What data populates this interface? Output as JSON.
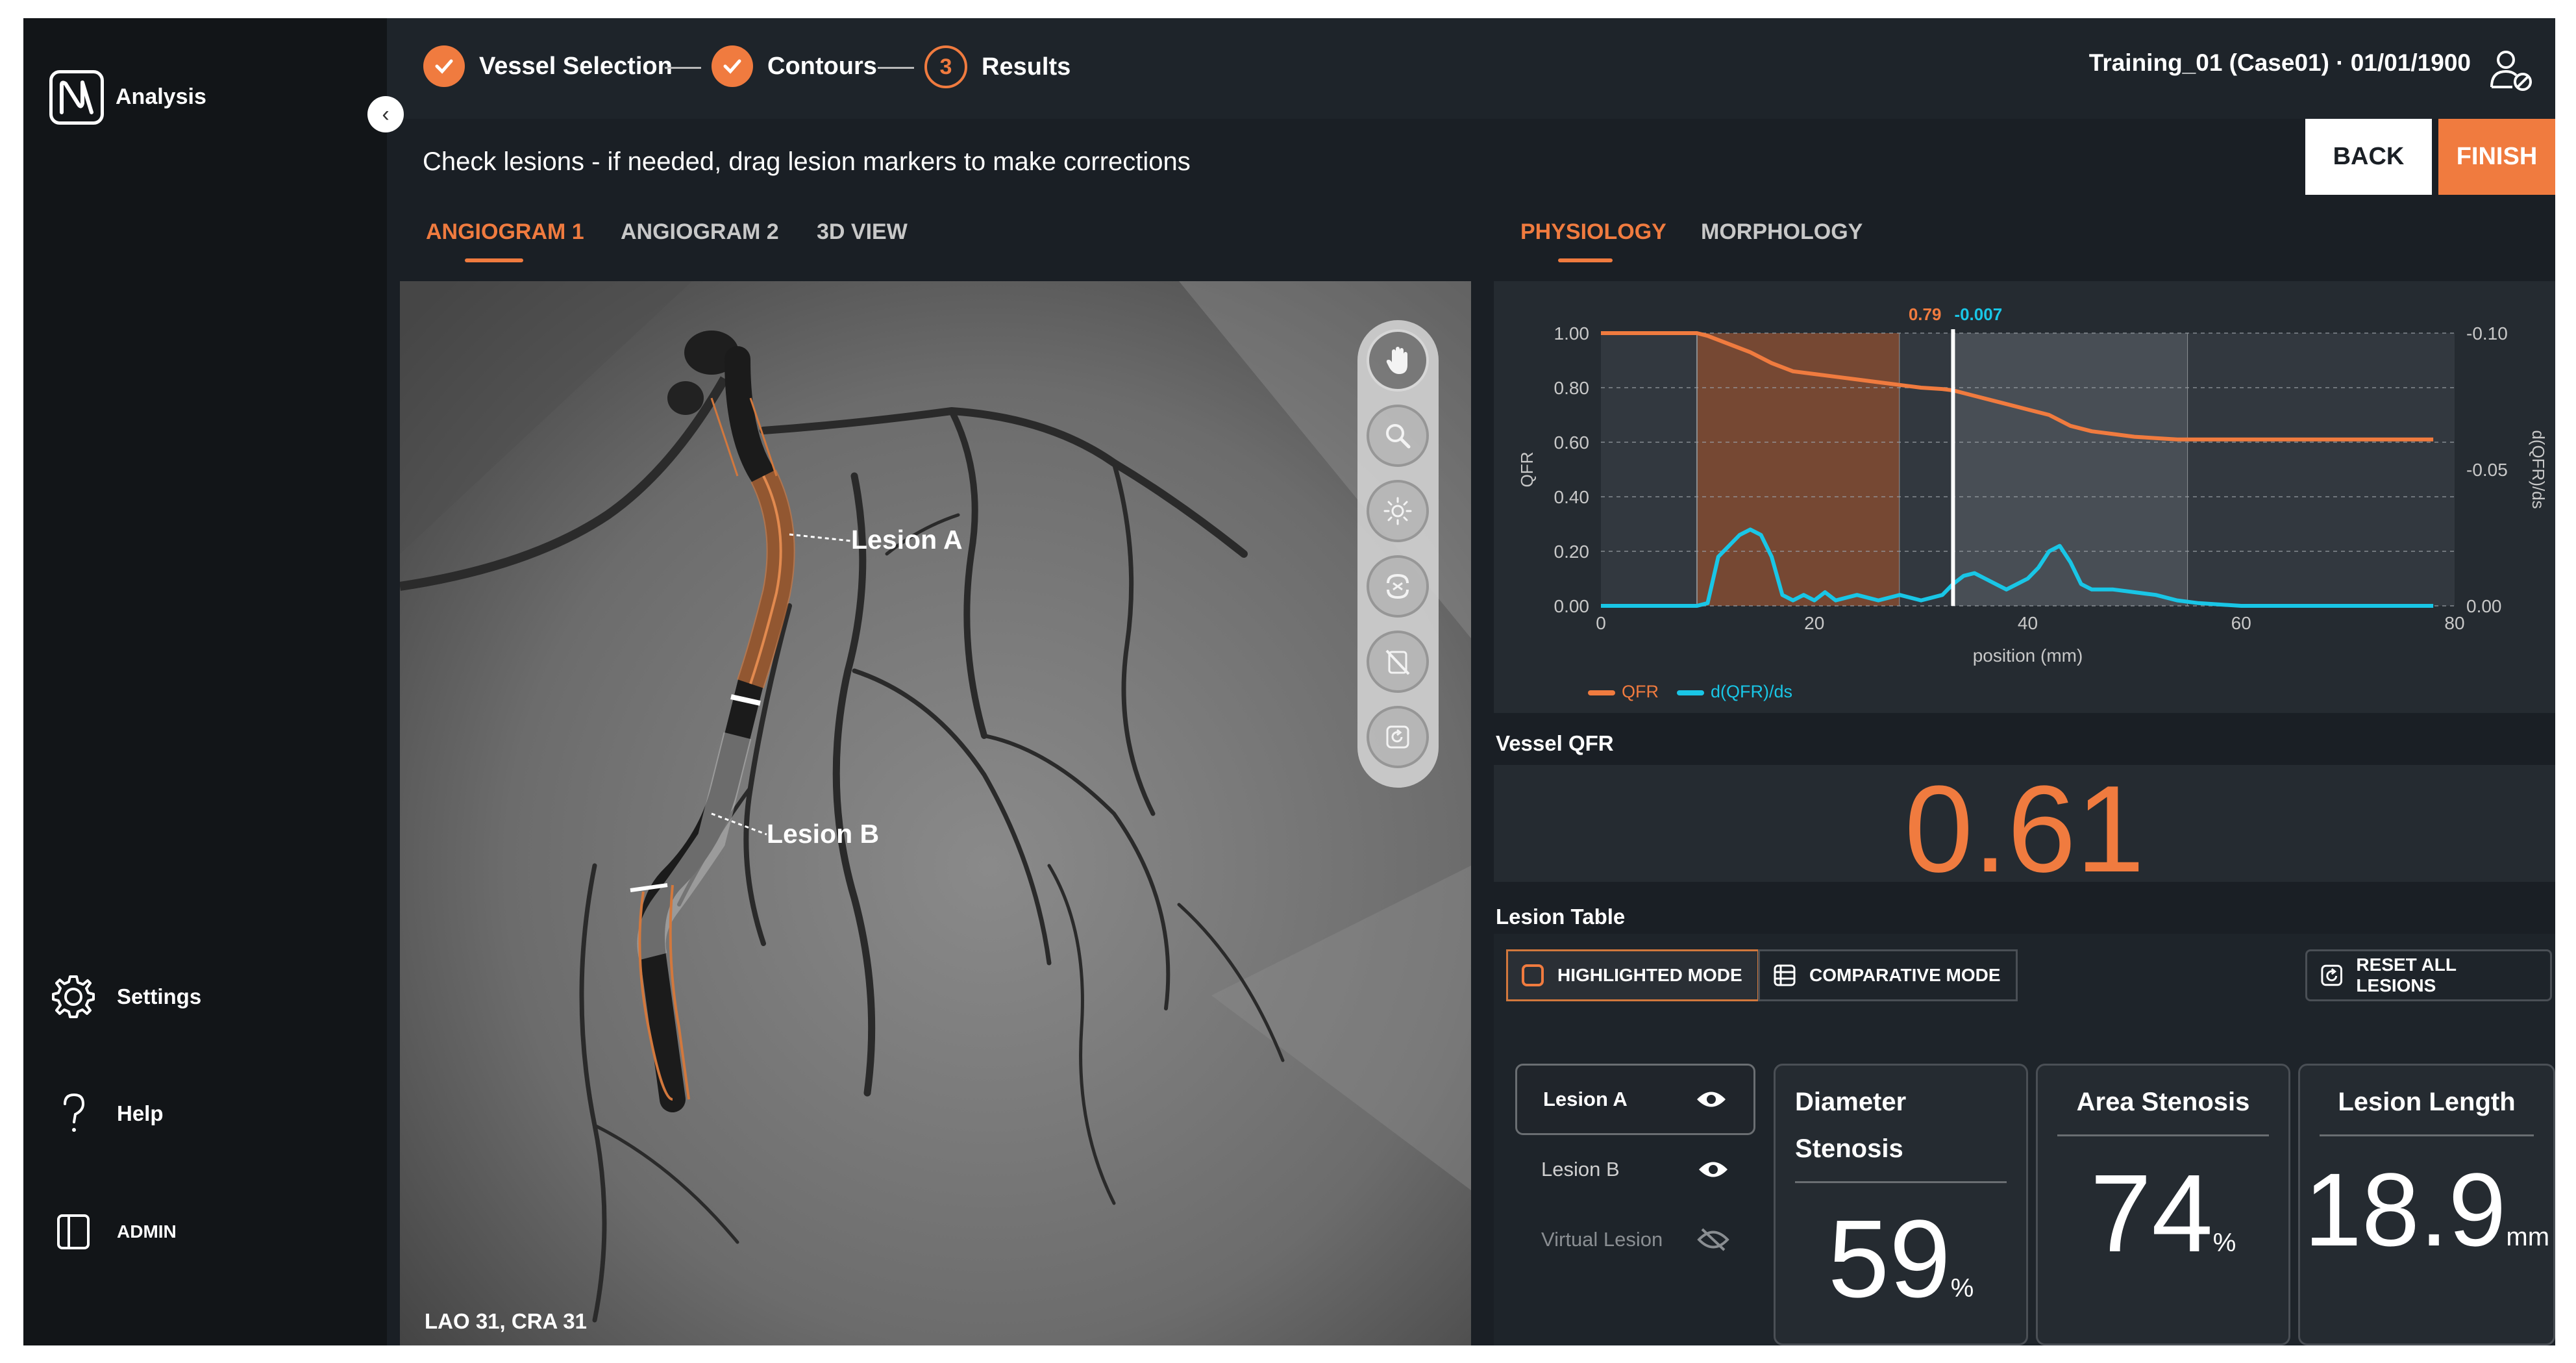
{
  "sidebar": {
    "app_name": "Analysis",
    "items": [
      {
        "label": "Settings",
        "icon": "gear-icon"
      },
      {
        "label": "Help",
        "icon": "question-icon"
      },
      {
        "label": "ADMIN",
        "icon": "admin-panel-icon"
      }
    ]
  },
  "steps": [
    {
      "label": "Vessel Selection",
      "state": "done"
    },
    {
      "label": "Contours",
      "state": "done"
    },
    {
      "label": "Results",
      "number": "3",
      "state": "current"
    }
  ],
  "case_info": "Training_01 (Case01)  ·  01/01/1900",
  "instruction": "Check lesions - if needed, drag lesion markers to make corrections",
  "buttons": {
    "back": "BACK",
    "finish": "FINISH"
  },
  "left_tabs": [
    "ANGIOGRAM 1",
    "ANGIOGRAM 2",
    "3D VIEW"
  ],
  "right_tabs": [
    "PHYSIOLOGY",
    "MORPHOLOGY"
  ],
  "angiogram": {
    "lesion_a_label": "Lesion A",
    "lesion_b_label": "Lesion B",
    "view_label": "LAO 31, CRA 31",
    "tools": [
      "hand-pan-icon",
      "zoom-icon",
      "brightness-icon",
      "lasso-icon",
      "hide-icon",
      "reset-icon"
    ]
  },
  "chart_data": {
    "type": "line",
    "xlabel": "position (mm)",
    "ylabel": "QFR",
    "y2label": "d(QFR)/ds",
    "xlim": [
      0,
      80
    ],
    "ylim": [
      0,
      1.0
    ],
    "y2lim": [
      0,
      -0.1
    ],
    "x_ticks": [
      "0",
      "20",
      "40",
      "60",
      "80"
    ],
    "y_ticks": [
      "0.00",
      "0.20",
      "0.40",
      "0.60",
      "0.80",
      "1.00"
    ],
    "y2_ticks": [
      "0.00",
      "-0.05",
      "-0.10"
    ],
    "cursor_x": 33,
    "cursor_readout_qfr": "0.79",
    "cursor_readout_grad": "-0.007",
    "regions": [
      {
        "from": 0,
        "to": 9,
        "kind": "normal"
      },
      {
        "from": 9,
        "to": 28,
        "kind": "lesion-highlighted"
      },
      {
        "from": 28,
        "to": 33,
        "kind": "normal"
      },
      {
        "from": 33,
        "to": 55,
        "kind": "lesion"
      },
      {
        "from": 55,
        "to": 80,
        "kind": "normal"
      }
    ],
    "series": [
      {
        "name": "QFR",
        "color": "#f07b3f",
        "x": [
          0,
          9,
          10,
          12,
          14,
          16,
          18,
          20,
          22,
          24,
          26,
          28,
          30,
          32,
          33,
          34,
          36,
          38,
          40,
          42,
          44,
          46,
          48,
          50,
          52,
          54,
          56,
          60,
          64,
          68,
          72,
          78
        ],
        "y": [
          1.0,
          1.0,
          0.99,
          0.96,
          0.93,
          0.89,
          0.86,
          0.85,
          0.84,
          0.83,
          0.82,
          0.81,
          0.8,
          0.795,
          0.79,
          0.78,
          0.76,
          0.74,
          0.72,
          0.7,
          0.66,
          0.64,
          0.63,
          0.62,
          0.615,
          0.61,
          0.61,
          0.61,
          0.61,
          0.61,
          0.61,
          0.61
        ]
      },
      {
        "name": "d(QFR)/ds",
        "color": "#19c6e6",
        "x": [
          0,
          9,
          10,
          11,
          12,
          13,
          14,
          15,
          16,
          17,
          18,
          19,
          20,
          21,
          22,
          24,
          26,
          28,
          30,
          32,
          33,
          34,
          35,
          36,
          37,
          38,
          39,
          40,
          41,
          42,
          43,
          44,
          45,
          46,
          48,
          50,
          52,
          54,
          56,
          60,
          70,
          78
        ],
        "y": [
          0,
          0,
          0.001,
          0.018,
          0.022,
          0.026,
          0.028,
          0.026,
          0.018,
          0.004,
          0.002,
          0.004,
          0.002,
          0.005,
          0.002,
          0.004,
          0.002,
          0.004,
          0.002,
          0.004,
          0.008,
          0.011,
          0.012,
          0.01,
          0.008,
          0.006,
          0.008,
          0.01,
          0.014,
          0.02,
          0.022,
          0.016,
          0.008,
          0.006,
          0.006,
          0.005,
          0.004,
          0.002,
          0.001,
          0,
          0,
          0
        ]
      }
    ]
  },
  "vessel_qfr": {
    "label": "Vessel QFR",
    "value": "0.61"
  },
  "lesion_table": {
    "label": "Lesion Table",
    "highlighted_mode": "HIGHLIGHTED MODE",
    "comparative_mode": "COMPARATIVE MODE",
    "reset_all": "RESET ALL LESIONS",
    "lesions": [
      "Lesion A",
      "Lesion B",
      "Virtual Lesion"
    ]
  },
  "metrics": {
    "diameter_stenosis": {
      "title": "Diameter Stenosis",
      "value": "59",
      "unit": "%"
    },
    "area_stenosis": {
      "title": "Area Stenosis",
      "value": "74",
      "unit": "%"
    },
    "lesion_length": {
      "title": "Lesion Length",
      "value": "18.9",
      "unit": "mm"
    }
  },
  "colors": {
    "accent": "#f07b3f",
    "gradient_line": "#19c6e6",
    "background": "#1a1f25"
  }
}
